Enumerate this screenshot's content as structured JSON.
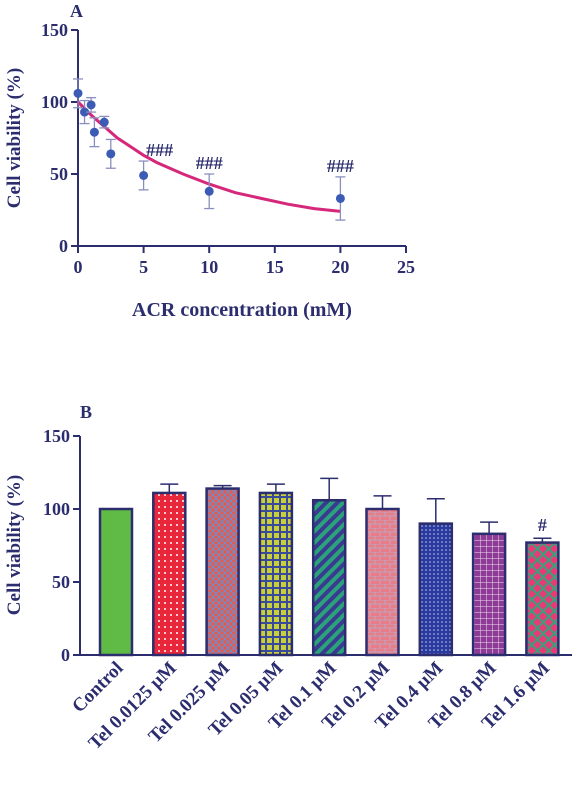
{
  "colors": {
    "axis": "#2b2d6e",
    "curve": "#d6287a",
    "point": "#3b5bb5",
    "error": "#8a8fbf"
  },
  "chart_data": [
    {
      "panel": "A",
      "type": "scatter",
      "xlabel": "ACR concentration (mM)",
      "ylabel": "Cell viability (%)",
      "xlim": [
        0,
        25
      ],
      "ylim": [
        0,
        150
      ],
      "xticks": [
        "0",
        "5",
        "10",
        "15",
        "20",
        "25"
      ],
      "yticks": [
        "0",
        "50",
        "100",
        "150"
      ],
      "points": [
        {
          "x": 0,
          "y": 106,
          "err": 10
        },
        {
          "x": 0.5,
          "y": 93,
          "err": 8
        },
        {
          "x": 1,
          "y": 98,
          "err": 5
        },
        {
          "x": 1.25,
          "y": 79,
          "err": 10
        },
        {
          "x": 2,
          "y": 86,
          "err": 4
        },
        {
          "x": 2.5,
          "y": 64,
          "err": 10
        },
        {
          "x": 5,
          "y": 49,
          "err": 10
        },
        {
          "x": 10,
          "y": 38,
          "err": 12
        },
        {
          "x": 20,
          "y": 33,
          "err": 15
        }
      ],
      "fit_curve": {
        "x": [
          0,
          1,
          2,
          3,
          4,
          5,
          6,
          8,
          10,
          12,
          14,
          16,
          18,
          20
        ],
        "y": [
          100,
          91,
          83,
          75,
          69,
          63,
          58,
          50,
          43,
          37,
          33,
          29,
          26,
          24
        ]
      },
      "annotations": [
        {
          "x": 5,
          "y": 49,
          "text": "###"
        },
        {
          "x": 10,
          "y": 38,
          "text": "###"
        },
        {
          "x": 20,
          "y": 33,
          "text": "###"
        }
      ]
    },
    {
      "panel": "B",
      "type": "bar",
      "ylabel": "Cell viability (%)",
      "ylim": [
        0,
        150
      ],
      "yticks": [
        "0",
        "50",
        "100",
        "150"
      ],
      "categories": [
        "Control",
        "Tel 0.0125 μM",
        "Tel 0.025 μM",
        "Tel 0.05 μM",
        "Tel 0.1 μM",
        "Tel 0.2 μM",
        "Tel 0.4 μM",
        "Tel 0.8 μM",
        "Tel 1.6 μM"
      ],
      "values": [
        100,
        111,
        114,
        111,
        106,
        100,
        90,
        83,
        77
      ],
      "errors": [
        0,
        6,
        2,
        6,
        15,
        9,
        17,
        8,
        3
      ],
      "bar_colors": [
        "#5fba46",
        "#e8283a",
        "#e55a4c",
        "#c8cf3a",
        "#2aa37a",
        "#e87d87",
        "#2a3a9e",
        "#8e3a97",
        "#e83a78"
      ],
      "patterns": [
        "solid",
        "dots",
        "crosshatch",
        "grid",
        "diagonal",
        "brick",
        "dense-dots",
        "grid-fine",
        "diamond"
      ],
      "annotations": [
        {
          "index": 8,
          "text": "#"
        }
      ]
    }
  ]
}
